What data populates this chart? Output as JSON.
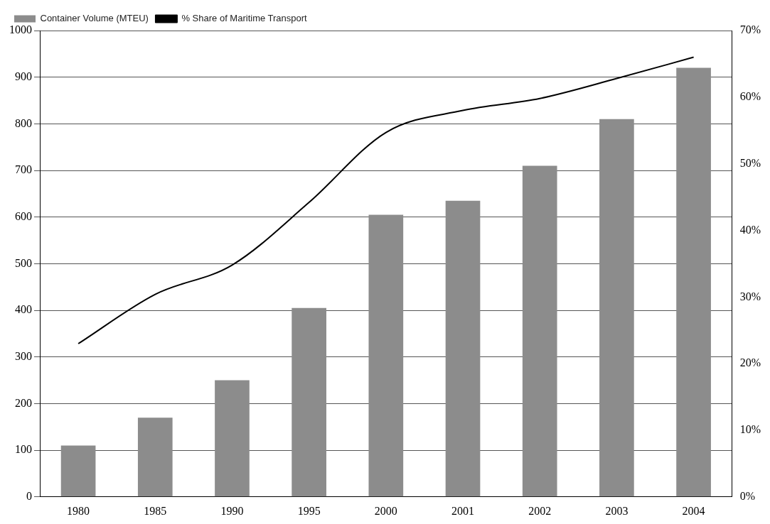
{
  "chart_data": {
    "type": "bar",
    "categories": [
      "1980",
      "1985",
      "1990",
      "1995",
      "2000",
      "2001",
      "2002",
      "2003",
      "2004"
    ],
    "series": [
      {
        "name": "Container Volume (MTEU)",
        "color": "#8c8c8c",
        "values": [
          110,
          170,
          250,
          405,
          605,
          635,
          710,
          810,
          920
        ]
      },
      {
        "name": "% Share of Maritime Transport",
        "type": "line",
        "axis": "y2",
        "color": "#000000",
        "values": [
          23,
          30.4,
          34.8,
          44.2,
          54.7,
          58,
          59.8,
          62.8,
          66
        ]
      }
    ],
    "ylim": [
      0,
      1000
    ],
    "yticks": [
      0,
      100,
      200,
      300,
      400,
      500,
      600,
      700,
      800,
      900,
      1000
    ],
    "y2lim": [
      0,
      70
    ],
    "y2ticks": [
      {
        "value": 0,
        "label": "0%"
      },
      {
        "value": 10,
        "label": "10%"
      },
      {
        "value": 20,
        "label": "20%"
      },
      {
        "value": 30,
        "label": "30%"
      },
      {
        "value": 40,
        "label": "40%"
      },
      {
        "value": 50,
        "label": "50%"
      },
      {
        "value": 60,
        "label": "60%"
      },
      {
        "value": 70,
        "label": "70%"
      }
    ],
    "grid": "y",
    "legend": "top left",
    "marker": "none"
  }
}
